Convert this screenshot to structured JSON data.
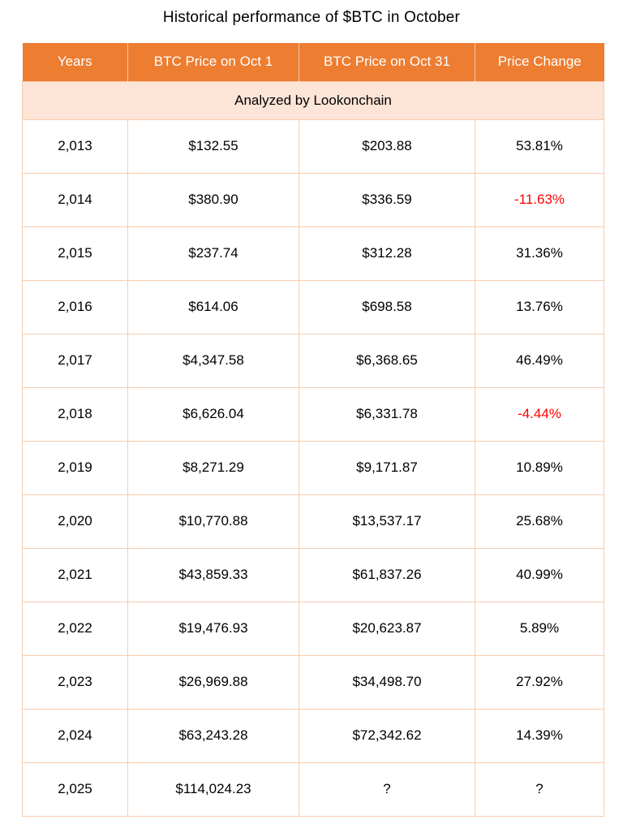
{
  "title": "Historical performance of $BTC in October",
  "colors": {
    "header_bg": "#ED7D31",
    "header_text": "#FFFFFF",
    "subheader_bg": "#FCE4D6",
    "grid_border": "#F8CBAD",
    "negative_text": "#FF0000",
    "body_text": "#000000",
    "background": "#FFFFFF"
  },
  "chart_data": {
    "type": "table",
    "title": "Historical performance of $BTC in October",
    "subheader": "Analyzed by Lookonchain",
    "columns": [
      "Years",
      "BTC Price on Oct 1",
      "BTC Price on Oct 31",
      "Price Change"
    ],
    "rows": [
      [
        "2,013",
        "$132.55",
        "$203.88",
        "53.81%"
      ],
      [
        "2,014",
        "$380.90",
        "$336.59",
        "-11.63%"
      ],
      [
        "2,015",
        "$237.74",
        "$312.28",
        "31.36%"
      ],
      [
        "2,016",
        "$614.06",
        "$698.58",
        "13.76%"
      ],
      [
        "2,017",
        "$4,347.58",
        "$6,368.65",
        "46.49%"
      ],
      [
        "2,018",
        "$6,626.04",
        "$6,331.78",
        "-4.44%"
      ],
      [
        "2,019",
        "$8,271.29",
        "$9,171.87",
        "10.89%"
      ],
      [
        "2,020",
        "$10,770.88",
        "$13,537.17",
        "25.68%"
      ],
      [
        "2,021",
        "$43,859.33",
        "$61,837.26",
        "40.99%"
      ],
      [
        "2,022",
        "$19,476.93",
        "$20,623.87",
        "5.89%"
      ],
      [
        "2,023",
        "$26,969.88",
        "$34,498.70",
        "27.92%"
      ],
      [
        "2,024",
        "$63,243.28",
        "$72,342.62",
        "14.39%"
      ],
      [
        "2,025",
        "$114,024.23",
        "?",
        "?"
      ]
    ]
  }
}
